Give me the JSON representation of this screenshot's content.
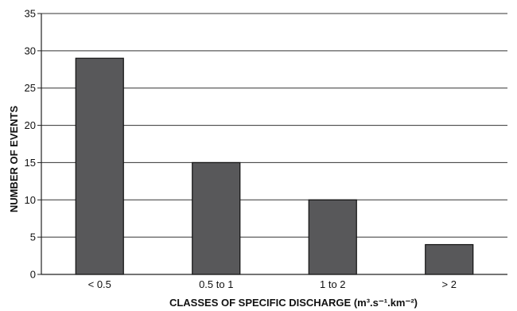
{
  "chart_data": {
    "type": "bar",
    "categories": [
      "< 0.5",
      "0.5 to 1",
      "1 to 2",
      "> 2"
    ],
    "values": [
      29,
      15,
      10,
      4
    ],
    "title": "",
    "xlabel": "CLASSES OF SPECIFIC DISCHARGE (m³.s⁻¹.km⁻²)",
    "ylabel": "NUMBER OF EVENTS",
    "ylim": [
      0,
      35
    ],
    "yticks": [
      "0",
      "5",
      "10",
      "15",
      "20",
      "25",
      "30",
      "35"
    ],
    "grid": "horizontal",
    "bar_color": "#58585a",
    "legend": "none"
  }
}
